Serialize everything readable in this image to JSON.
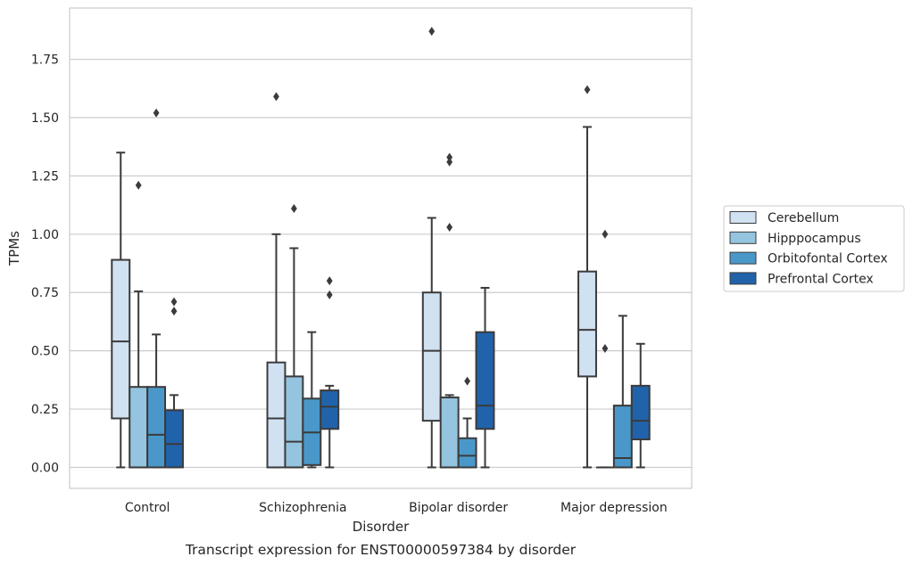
{
  "chart_data": {
    "type": "box",
    "xlabel": "Disorder",
    "ylabel": "TPMs",
    "caption": "Transcript expression for ENST00000597384 by disorder",
    "categories": [
      "Control",
      "Schizophrenia",
      "Bipolar disorder",
      "Major depression"
    ],
    "ylim": [
      -0.09,
      1.97
    ],
    "yticks": [
      0.0,
      0.25,
      0.5,
      0.75,
      1.0,
      1.25,
      1.5,
      1.75
    ],
    "ytick_labels": [
      "0.00",
      "0.25",
      "0.50",
      "0.75",
      "1.00",
      "1.25",
      "1.50",
      "1.75"
    ],
    "grid": "horizontal",
    "legend_position": "right",
    "series": [
      {
        "name": "Cerebellum",
        "color": "#d0e1f2",
        "boxes": [
          {
            "min": 0.0,
            "q1": 0.21,
            "median": 0.54,
            "q3": 0.89,
            "max": 1.35,
            "outliers": []
          },
          {
            "min": 0.0,
            "q1": 0.0,
            "median": 0.21,
            "q3": 0.45,
            "max": 1.0,
            "outliers": [
              1.59
            ]
          },
          {
            "min": 0.0,
            "q1": 0.2,
            "median": 0.5,
            "q3": 0.75,
            "max": 1.07,
            "outliers": [
              1.87
            ]
          },
          {
            "min": 0.0,
            "q1": 0.39,
            "median": 0.59,
            "q3": 0.84,
            "max": 1.46,
            "outliers": [
              1.62
            ]
          }
        ]
      },
      {
        "name": "Hipppocampus",
        "color": "#94c4df",
        "boxes": [
          {
            "min": 0.0,
            "q1": 0.0,
            "median": 0.0,
            "q3": 0.345,
            "max": 0.755,
            "outliers": [
              1.21
            ]
          },
          {
            "min": 0.0,
            "q1": 0.0,
            "median": 0.11,
            "q3": 0.39,
            "max": 0.94,
            "outliers": [
              1.11
            ]
          },
          {
            "min": 0.0,
            "q1": 0.0,
            "median": 0.0,
            "q3": 0.3,
            "max": 0.31,
            "outliers": [
              1.03,
              1.31,
              1.33
            ]
          },
          {
            "min": 0.0,
            "q1": 0.0,
            "median": 0.0,
            "q3": 0.0,
            "max": 0.0,
            "outliers": [
              0.51,
              1.0
            ]
          }
        ]
      },
      {
        "name": "Orbitofontal Cortex",
        "color": "#4a98c9",
        "boxes": [
          {
            "min": 0.0,
            "q1": 0.0,
            "median": 0.14,
            "q3": 0.345,
            "max": 0.57,
            "outliers": [
              1.52
            ]
          },
          {
            "min": 0.0,
            "q1": 0.01,
            "median": 0.15,
            "q3": 0.295,
            "max": 0.58,
            "outliers": []
          },
          {
            "min": 0.0,
            "q1": 0.0,
            "median": 0.05,
            "q3": 0.125,
            "max": 0.21,
            "outliers": [
              0.37
            ]
          },
          {
            "min": 0.0,
            "q1": 0.0,
            "median": 0.04,
            "q3": 0.265,
            "max": 0.65,
            "outliers": []
          }
        ]
      },
      {
        "name": "Prefrontal Cortex",
        "color": "#2163aa",
        "boxes": [
          {
            "min": 0.0,
            "q1": 0.0,
            "median": 0.1,
            "q3": 0.245,
            "max": 0.31,
            "outliers": [
              0.67,
              0.71
            ]
          },
          {
            "min": 0.0,
            "q1": 0.165,
            "median": 0.26,
            "q3": 0.33,
            "max": 0.35,
            "outliers": [
              0.74,
              0.8
            ]
          },
          {
            "min": 0.0,
            "q1": 0.165,
            "median": 0.265,
            "q3": 0.58,
            "max": 0.77,
            "outliers": []
          },
          {
            "min": 0.0,
            "q1": 0.12,
            "median": 0.2,
            "q3": 0.35,
            "max": 0.53,
            "outliers": []
          }
        ]
      }
    ]
  }
}
